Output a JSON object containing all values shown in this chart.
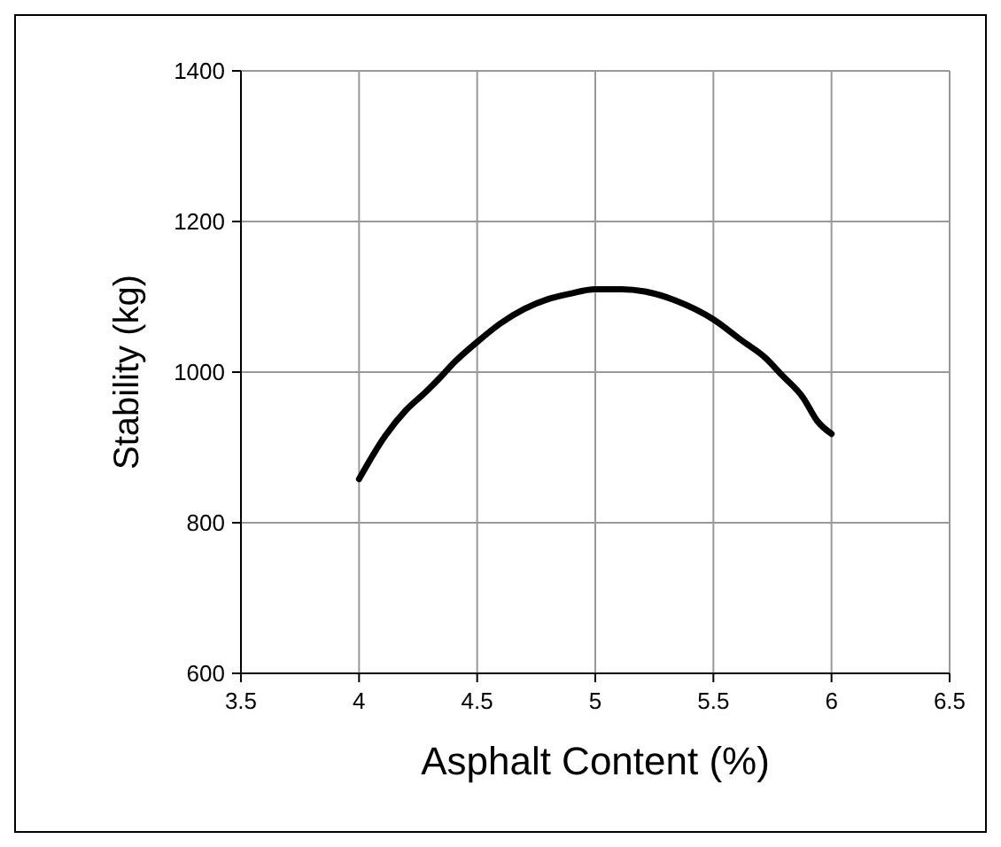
{
  "chart_data": {
    "type": "line",
    "xlabel": "Asphalt Content (%)",
    "ylabel": "Stability (kg)",
    "x": [
      4,
      4.11,
      4.2,
      4.28,
      4.35,
      4.4,
      4.5,
      4.6,
      4.7,
      4.8,
      4.89,
      5,
      5.11,
      5.21,
      5.34,
      5.5,
      5.62,
      5.72,
      5.79,
      5.88,
      5.94,
      6
    ],
    "series": [
      {
        "color": "#000000",
        "values": [
          858,
          915,
          950,
          973,
          995,
          1012,
          1040,
          1065,
          1084,
          1097,
          1104,
          1110,
          1110,
          1107,
          1095,
          1070,
          1042,
          1019,
          996,
          966,
          935,
          918
        ]
      }
    ],
    "xlim": [
      3.5,
      6.5
    ],
    "xticks": [
      3.5,
      4,
      4.5,
      5,
      5.5,
      6,
      6.5
    ],
    "ylim": [
      600,
      1400
    ],
    "yticks": [
      600,
      800,
      1000,
      1200,
      1400
    ],
    "grid": true,
    "marker": "none",
    "line_style": "solid"
  }
}
